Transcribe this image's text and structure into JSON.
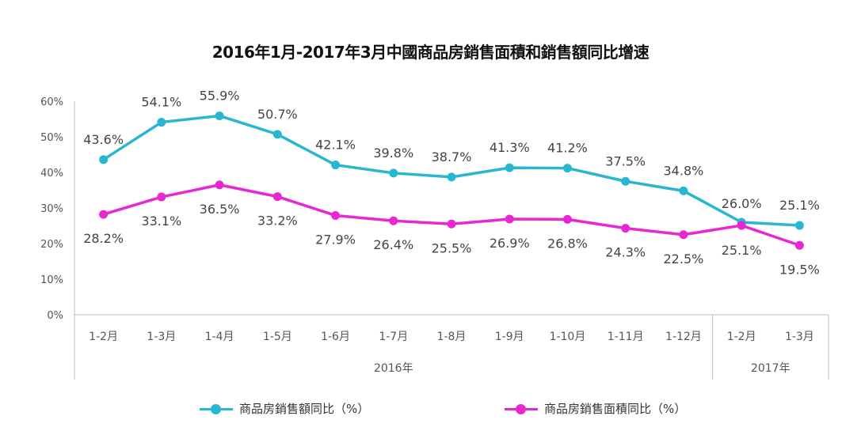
{
  "chart_data": {
    "type": "line",
    "title": "2016年1月-2017年3月中國商品房銷售面積和銷售額同比增速",
    "categories": [
      "1-2月",
      "1-3月",
      "1-4月",
      "1-5月",
      "1-6月",
      "1-7月",
      "1-8月",
      "1-9月",
      "1-10月",
      "1-11月",
      "1-12月",
      "1-2月",
      "1-3月"
    ],
    "groups": [
      {
        "label": "2016年",
        "count": 11
      },
      {
        "label": "2017年",
        "count": 2
      }
    ],
    "y_ticks": [
      "0%",
      "10%",
      "20%",
      "30%",
      "40%",
      "50%",
      "60%"
    ],
    "ylim": [
      0,
      60
    ],
    "grid": false,
    "legend_position": "bottom",
    "series": [
      {
        "name": "商品房銷售額同比（%）",
        "color": "#29b6d0",
        "values": [
          43.6,
          54.1,
          55.9,
          50.7,
          42.1,
          39.8,
          38.7,
          41.3,
          41.2,
          37.5,
          34.8,
          26.0,
          25.1
        ],
        "labels": [
          "43.6%",
          "54.1%",
          "55.9%",
          "50.7%",
          "42.1%",
          "39.8%",
          "38.7%",
          "41.3%",
          "41.2%",
          "37.5%",
          "34.8%",
          "26.0%",
          "25.1%"
        ]
      },
      {
        "name": "商品房銷售面積同比（%）",
        "color": "#e827d3",
        "values": [
          28.2,
          33.1,
          36.5,
          33.2,
          27.9,
          26.4,
          25.5,
          26.9,
          26.8,
          24.3,
          22.5,
          25.1,
          19.5
        ],
        "labels": [
          "28.2%",
          "33.1%",
          "36.5%",
          "33.2%",
          "27.9%",
          "26.4%",
          "25.5%",
          "26.9%",
          "26.8%",
          "24.3%",
          "22.5%",
          "25.1%",
          "19.5%"
        ]
      }
    ]
  }
}
